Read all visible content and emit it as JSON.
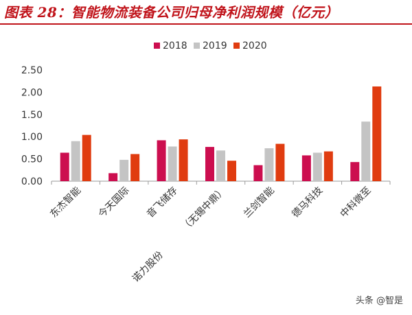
{
  "watermark": "头条 @智是",
  "colors": {
    "2018": "#cc0e4f",
    "2019": "#c4c4c4",
    "2020": "#e03c10",
    "title": "#c0131a",
    "axis": "#9a9a9a"
  },
  "chart_data": {
    "type": "bar",
    "title": "图表 28：智能物流装备公司归母净利润规模（亿元）",
    "xlabel": "",
    "ylabel": "",
    "legend_position": "top-center",
    "grid": false,
    "ylim": [
      0,
      2.5
    ],
    "yticks": [
      "0.00",
      "0.50",
      "1.00",
      "1.50",
      "2.00",
      "2.50"
    ],
    "categories": [
      "东杰智能",
      "今天国际",
      "音飞储存",
      "（无锡中鼎）",
      "兰剑智能",
      "德马科技",
      "中科微至"
    ],
    "extra_label": "诺力股份",
    "series": [
      {
        "name": "2018",
        "values": [
          0.64,
          0.18,
          0.92,
          0.77,
          0.36,
          0.58,
          0.43
        ]
      },
      {
        "name": "2019",
        "values": [
          0.9,
          0.48,
          0.78,
          0.69,
          0.74,
          0.64,
          1.34
        ]
      },
      {
        "name": "2020",
        "values": [
          1.04,
          0.61,
          0.94,
          0.46,
          0.84,
          0.67,
          2.13
        ]
      }
    ]
  }
}
